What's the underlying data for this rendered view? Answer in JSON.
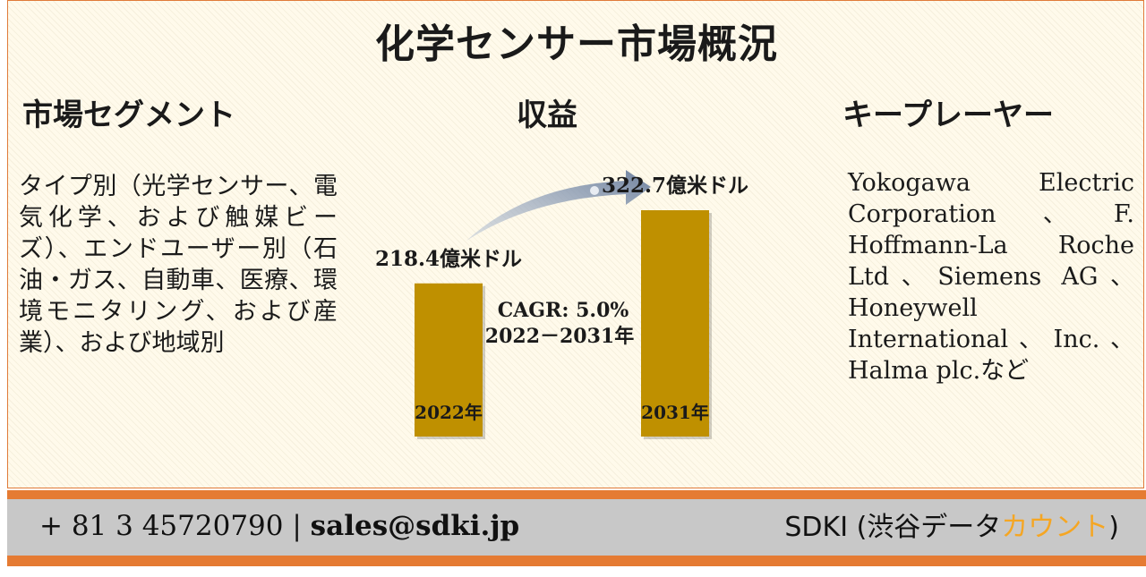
{
  "title": "化学センサー市場概況",
  "segments": {
    "heading": "市場セグメント",
    "text": "タイプ別（光学センサー、電気化学、および触媒ビーズ）、エンドユーザー別（石油・ガス、自動車、医療、環境モニタリング、および産業）、および地域別"
  },
  "revenue": {
    "heading": "収益",
    "cagr": "CAGR: 5.0%",
    "period": "2022－2031年"
  },
  "key_players": {
    "heading": "キープレーヤー",
    "text": "Yokogawa Electric Corporation、F. Hoffmann-La Roche Ltd、Siemens AG、Honeywell International、Inc.、Halma plc.など"
  },
  "chart_data": {
    "type": "bar",
    "categories": [
      "2022年",
      "2031年"
    ],
    "values": [
      218.4,
      322.7
    ],
    "value_labels": [
      "218.4億米ドル",
      "322.7億米ドル"
    ],
    "unit": "億米ドル",
    "bar_color": "#bf9000"
  },
  "footer": {
    "phone": "+ 81 3 45720790",
    "separator": "|",
    "email": "sales@sdki.jp",
    "brand_main": "SDKI (渋谷データ",
    "brand_accent": "カウント",
    "brand_end": ")"
  },
  "colors": {
    "accent_orange": "#e57b33",
    "footer_gray": "#c8c8c8",
    "brand_accent": "#f5a623",
    "arrow": "#8a9bb5"
  }
}
